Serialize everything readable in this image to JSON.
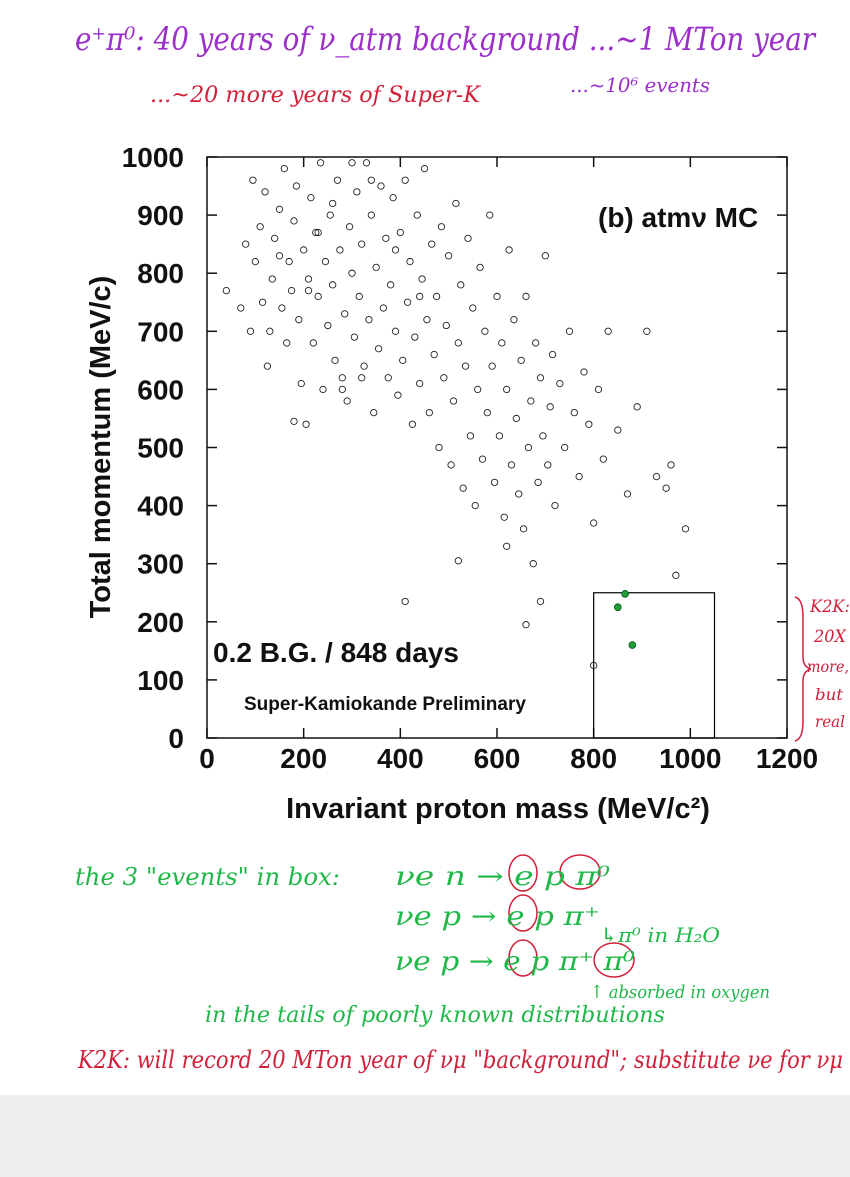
{
  "chart_data": {
    "type": "scatter",
    "xlabel": "Invariant proton mass (MeV/c²)",
    "ylabel": "Total momentum (MeV/c)",
    "xlim": [
      0,
      1200
    ],
    "xticks": [
      0,
      200,
      400,
      600,
      800,
      1000,
      1200
    ],
    "ylim": [
      0,
      1000
    ],
    "yticks": [
      0,
      100,
      200,
      300,
      400,
      500,
      600,
      700,
      800,
      900,
      1000
    ],
    "annotations": [
      "(b) atmν MC",
      "0.2 B.G. / 848 days",
      "Super-Kamiokande Preliminary"
    ],
    "box": {
      "x": [
        800,
        1050
      ],
      "y": [
        0,
        250
      ],
      "color": "#000000"
    },
    "series": [
      {
        "color": "#222222",
        "marker": "open",
        "x": [
          40,
          70,
          80,
          90,
          95,
          100,
          110,
          115,
          120,
          125,
          130,
          135,
          140,
          150,
          155,
          160,
          165,
          170,
          175,
          180,
          185,
          190,
          195,
          200,
          205,
          210,
          215,
          220,
          225,
          230,
          235,
          240,
          245,
          250,
          255,
          260,
          265,
          270,
          275,
          280,
          285,
          290,
          295,
          300,
          305,
          310,
          315,
          320,
          325,
          330,
          335,
          340,
          345,
          350,
          355,
          360,
          365,
          370,
          375,
          380,
          385,
          390,
          395,
          400,
          405,
          410,
          415,
          420,
          425,
          430,
          435,
          440,
          445,
          450,
          455,
          460,
          465,
          470,
          475,
          480,
          485,
          490,
          495,
          500,
          505,
          510,
          515,
          520,
          525,
          530,
          535,
          540,
          545,
          550,
          555,
          560,
          565,
          570,
          575,
          580,
          585,
          590,
          595,
          600,
          605,
          610,
          615,
          620,
          625,
          630,
          635,
          640,
          645,
          650,
          655,
          660,
          665,
          670,
          675,
          680,
          685,
          690,
          695,
          700,
          705,
          710,
          715,
          720,
          730,
          740,
          750,
          760,
          770,
          780,
          790,
          800,
          810,
          820,
          830,
          850,
          870,
          890,
          910,
          930,
          950,
          960,
          990,
          970,
          410,
          690,
          660,
          520,
          620,
          180,
          280,
          320,
          800,
          210,
          150,
          260,
          340,
          390,
          440,
          230,
          300
        ],
        "y": [
          770,
          740,
          850,
          700,
          960,
          820,
          880,
          750,
          940,
          640,
          700,
          790,
          860,
          910,
          740,
          980,
          680,
          820,
          770,
          890,
          950,
          720,
          610,
          840,
          540,
          790,
          930,
          680,
          870,
          760,
          990,
          600,
          820,
          710,
          900,
          780,
          650,
          960,
          840,
          620,
          730,
          580,
          880,
          800,
          690,
          940,
          760,
          850,
          640,
          990,
          720,
          900,
          560,
          810,
          670,
          950,
          740,
          860,
          620,
          780,
          930,
          700,
          590,
          870,
          650,
          960,
          750,
          820,
          540,
          690,
          900,
          610,
          790,
          980,
          720,
          560,
          850,
          660,
          760,
          500,
          880,
          620,
          710,
          830,
          470,
          580,
          920,
          680,
          780,
          430,
          640,
          860,
          520,
          740,
          400,
          600,
          810,
          480,
          700,
          560,
          900,
          640,
          440,
          760,
          520,
          680,
          380,
          600,
          840,
          470,
          720,
          550,
          420,
          650,
          360,
          760,
          500,
          580,
          300,
          680,
          440,
          620,
          520,
          830,
          470,
          570,
          660,
          400,
          610,
          500,
          700,
          560,
          450,
          630,
          540,
          370,
          600,
          480,
          700,
          530,
          420,
          570,
          700,
          450,
          430,
          470,
          360,
          280,
          235,
          235,
          195,
          305,
          330,
          545,
          600,
          620,
          125,
          770,
          830,
          920,
          960,
          840,
          760,
          870,
          990
        ]
      },
      {
        "color": "#1f9e3a",
        "marker": "filled",
        "x": [
          865,
          850,
          880
        ],
        "y": [
          248,
          225,
          160
        ]
      }
    ]
  },
  "notes": [
    {
      "text": "e⁺π⁰:  40 years of ν_atm background ...~1 MTon year",
      "color": "#9b2fc9"
    },
    {
      "text": "...~20 more years of Super-K",
      "color": "#d0203a"
    },
    {
      "text": "...~10⁶ events",
      "color": "#9b2fc9"
    },
    {
      "text": "K2K:",
      "color": "#d0203a"
    },
    {
      "text": "20X",
      "color": "#d0203a"
    },
    {
      "text": "more,",
      "color": "#d0203a"
    },
    {
      "text": "but",
      "color": "#d0203a"
    },
    {
      "text": "real",
      "color": "#d0203a"
    },
    {
      "text": "the 3 \"events\" in box:",
      "color": "#21b84a"
    },
    {
      "text": "νe n → e p π⁰",
      "color": "#21b84a"
    },
    {
      "text": "νe p → e p π⁺",
      "color": "#21b84a"
    },
    {
      "text": "↳π⁰ in H₂O",
      "color": "#21b84a"
    },
    {
      "text": "νe p → e p π⁺ π⁰",
      "color": "#21b84a"
    },
    {
      "text": "↑ absorbed in oxygen",
      "color": "#21b84a"
    },
    {
      "text": "in the tails of poorly known distributions",
      "color": "#21b84a"
    },
    {
      "text": "K2K:  will record 20 MTon year of νμ \"background\"; substitute νe for νμ",
      "color": "#d0203a"
    }
  ]
}
